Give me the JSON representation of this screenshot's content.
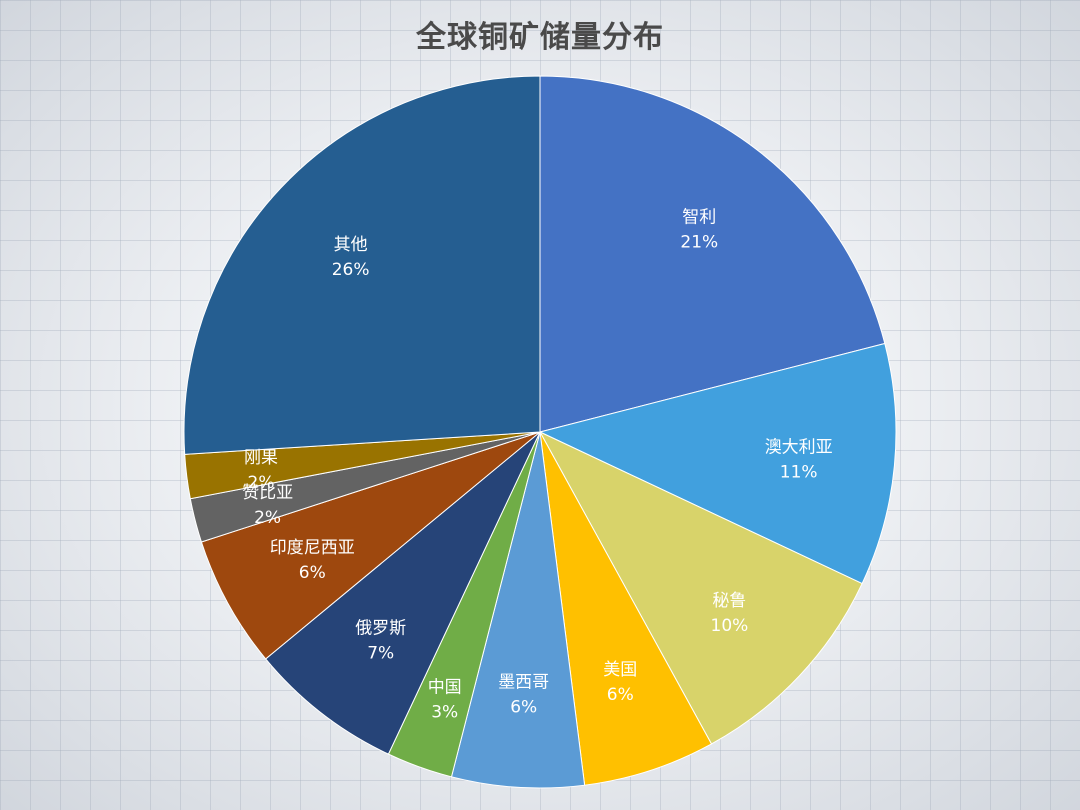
{
  "chart_data": {
    "type": "pie",
    "title": "全球铜矿储量分布",
    "start": "top",
    "direction": "clockwise",
    "slices": [
      {
        "label": "智利",
        "value": 21,
        "value_label": "21%",
        "color": "#4472c4"
      },
      {
        "label": "澳大利亚",
        "value": 11,
        "value_label": "11%",
        "color": "#41a0de"
      },
      {
        "label": "秘鲁",
        "value": 10,
        "value_label": "10%",
        "color": "#d8d36a"
      },
      {
        "label": "美国",
        "value": 6,
        "value_label": "6%",
        "color": "#ffc000"
      },
      {
        "label": "墨西哥",
        "value": 6,
        "value_label": "6%",
        "color": "#5b9bd5"
      },
      {
        "label": "中国",
        "value": 3,
        "value_label": "3%",
        "color": "#70ad47"
      },
      {
        "label": "俄罗斯",
        "value": 7,
        "value_label": "7%",
        "color": "#264478"
      },
      {
        "label": "印度尼西亚",
        "value": 6,
        "value_label": "6%",
        "color": "#9e480e"
      },
      {
        "label": "赞比亚",
        "value": 2,
        "value_label": "2%",
        "color": "#636363"
      },
      {
        "label": "刚果",
        "value": 2,
        "value_label": "2%",
        "color": "#997300"
      },
      {
        "label": "其他",
        "value": 26,
        "value_label": "26%",
        "color": "#255e91"
      }
    ]
  }
}
